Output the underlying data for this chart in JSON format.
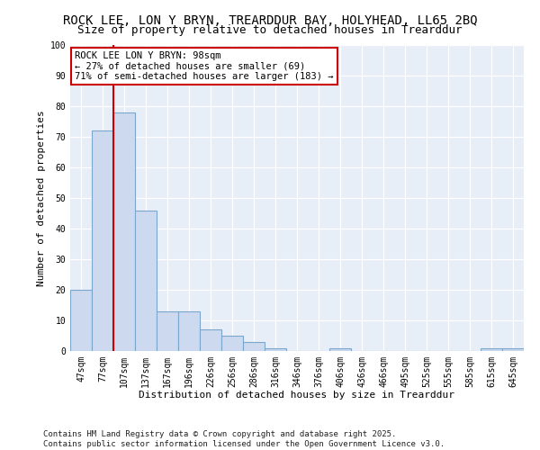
{
  "title1": "ROCK LEE, LON Y BRYN, TREARDDUR BAY, HOLYHEAD, LL65 2BQ",
  "title2": "Size of property relative to detached houses in Trearddur",
  "xlabel": "Distribution of detached houses by size in Trearddur",
  "ylabel": "Number of detached properties",
  "categories": [
    "47sqm",
    "77sqm",
    "107sqm",
    "137sqm",
    "167sqm",
    "196sqm",
    "226sqm",
    "256sqm",
    "286sqm",
    "316sqm",
    "346sqm",
    "376sqm",
    "406sqm",
    "436sqm",
    "466sqm",
    "495sqm",
    "525sqm",
    "555sqm",
    "585sqm",
    "615sqm",
    "645sqm"
  ],
  "bar_values": [
    20,
    72,
    78,
    46,
    13,
    13,
    7,
    5,
    3,
    1,
    0,
    0,
    1,
    0,
    0,
    0,
    0,
    0,
    0,
    1,
    1
  ],
  "bar_color": "#ccd9ee",
  "bar_edge_color": "#7ba7cc",
  "background_color": "#e8eef8",
  "grid_color": "#ffffff",
  "annotation_text": "ROCK LEE LON Y BRYN: 98sqm\n← 27% of detached houses are smaller (69)\n71% of semi-detached houses are larger (183) →",
  "annotation_box_edgecolor": "#cc0000",
  "red_line_xindex": 1.5,
  "ylim": [
    0,
    100
  ],
  "yticks": [
    0,
    10,
    20,
    30,
    40,
    50,
    60,
    70,
    80,
    90,
    100
  ],
  "footer": "Contains HM Land Registry data © Crown copyright and database right 2025.\nContains public sector information licensed under the Open Government Licence v3.0.",
  "title_fontsize": 10,
  "subtitle_fontsize": 9,
  "axis_label_fontsize": 8,
  "tick_fontsize": 7,
  "footer_fontsize": 6.5,
  "annot_fontsize": 7.5
}
